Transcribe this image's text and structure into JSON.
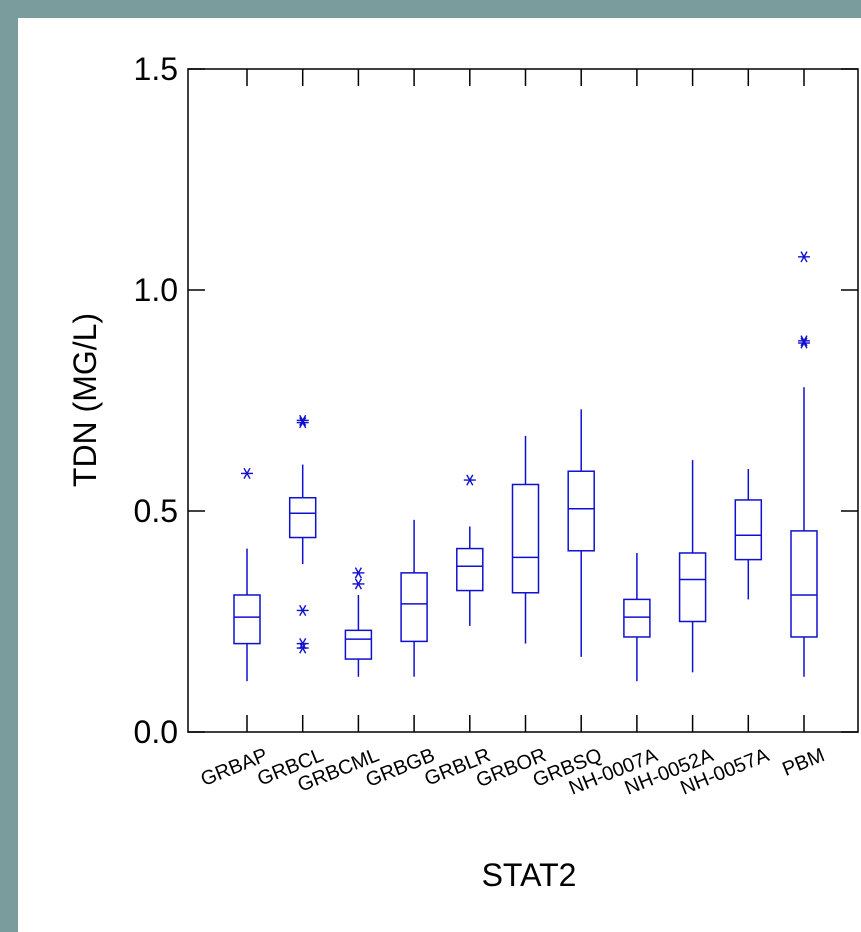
{
  "chart_data": {
    "type": "box",
    "xlabel": "STAT2",
    "ylabel": "TDN (MG/L)",
    "ylim": [
      0,
      1.5
    ],
    "yticks": [
      0.0,
      0.5,
      1.0,
      1.5
    ],
    "ytick_labels": [
      "0.0",
      "0.5",
      "1.0",
      "1.5"
    ],
    "color": "#1010d0",
    "grid": false,
    "categories": [
      "GRBAP",
      "GRBCL",
      "GRBCML",
      "GRBGB",
      "GRBLR",
      "GRBOR",
      "GRBSQ",
      "NH-0007A",
      "NH-0052A",
      "NH-0057A",
      "PBM"
    ],
    "boxes": [
      {
        "min": 0.115,
        "q1": 0.2,
        "median": 0.26,
        "q3": 0.31,
        "max": 0.415,
        "outliers": [
          0.585
        ]
      },
      {
        "min": 0.38,
        "q1": 0.44,
        "median": 0.495,
        "q3": 0.53,
        "max": 0.605,
        "outliers": [
          0.705,
          0.7,
          0.275,
          0.2,
          0.19
        ]
      },
      {
        "min": 0.125,
        "q1": 0.165,
        "median": 0.21,
        "q3": 0.23,
        "max": 0.31,
        "outliers": [
          0.36,
          0.335
        ]
      },
      {
        "min": 0.125,
        "q1": 0.205,
        "median": 0.29,
        "q3": 0.36,
        "max": 0.48,
        "outliers": []
      },
      {
        "min": 0.24,
        "q1": 0.32,
        "median": 0.375,
        "q3": 0.415,
        "max": 0.465,
        "outliers": [
          0.57
        ]
      },
      {
        "min": 0.2,
        "q1": 0.315,
        "median": 0.395,
        "q3": 0.56,
        "max": 0.67,
        "outliers": []
      },
      {
        "min": 0.17,
        "q1": 0.41,
        "median": 0.505,
        "q3": 0.59,
        "max": 0.73,
        "outliers": []
      },
      {
        "min": 0.115,
        "q1": 0.215,
        "median": 0.26,
        "q3": 0.3,
        "max": 0.405,
        "outliers": []
      },
      {
        "min": 0.135,
        "q1": 0.25,
        "median": 0.345,
        "q3": 0.405,
        "max": 0.615,
        "outliers": []
      },
      {
        "min": 0.3,
        "q1": 0.39,
        "median": 0.445,
        "q3": 0.525,
        "max": 0.595,
        "outliers": []
      },
      {
        "min": 0.125,
        "q1": 0.215,
        "median": 0.31,
        "q3": 0.455,
        "max": 0.78,
        "outliers": [
          1.075,
          0.885,
          0.88
        ]
      }
    ]
  }
}
